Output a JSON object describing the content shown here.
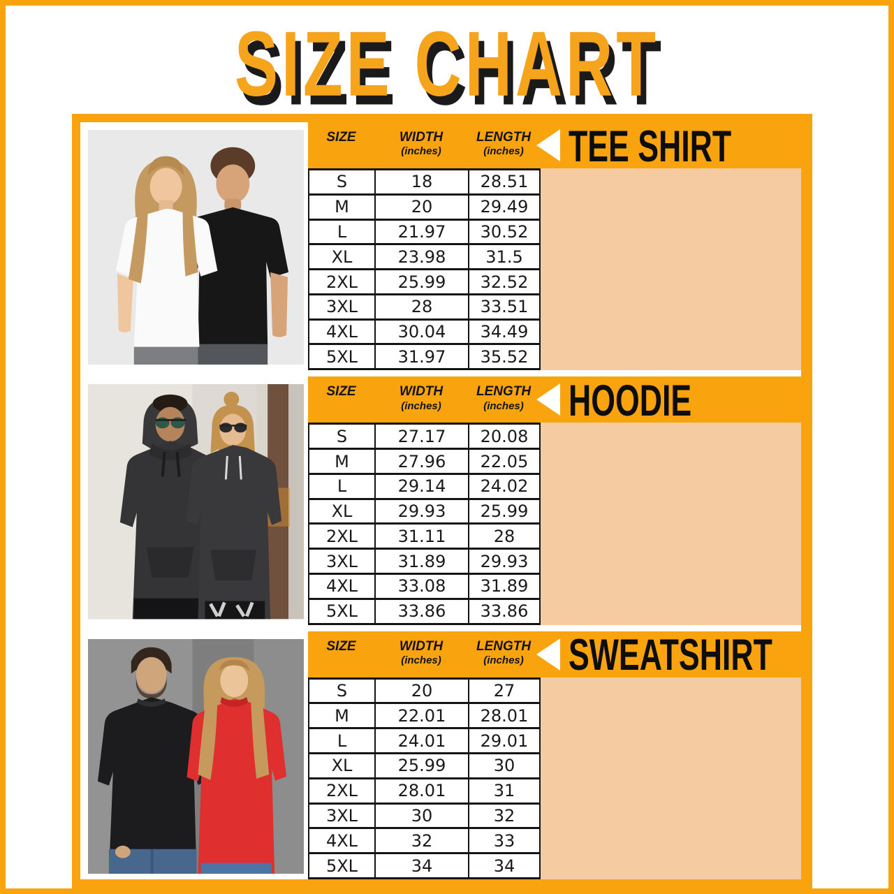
{
  "page_title": "SIZE CHART",
  "colors": {
    "orange": "#F9A40E",
    "peach": "#F5CBA2",
    "title_fill": "#F6A41C",
    "title_shadow": "#1A1A1A",
    "table_line": "#141414"
  },
  "column_headers": {
    "size": {
      "label": "SIZE",
      "sub": ""
    },
    "width": {
      "label": "WIDTH",
      "sub": "(inches)"
    },
    "length": {
      "label": "LENGTH",
      "sub": "(inches)"
    }
  },
  "sections": [
    {
      "title": "TEE SHIRT",
      "photo_alt": "man and woman wearing plain white and black tee shirts",
      "rows": [
        {
          "size": "S",
          "width": "18",
          "length": "28.51"
        },
        {
          "size": "M",
          "width": "20",
          "length": "29.49"
        },
        {
          "size": "L",
          "width": "21.97",
          "length": "30.52"
        },
        {
          "size": "XL",
          "width": "23.98",
          "length": "31.5"
        },
        {
          "size": "2XL",
          "width": "25.99",
          "length": "32.52"
        },
        {
          "size": "3XL",
          "width": "28",
          "length": "33.51"
        },
        {
          "size": "4XL",
          "width": "30.04",
          "length": "34.49"
        },
        {
          "size": "5XL",
          "width": "31.97",
          "length": "35.52"
        }
      ]
    },
    {
      "title": "HOODIE",
      "photo_alt": "man and woman wearing dark hoodies and sunglasses outdoors",
      "rows": [
        {
          "size": "S",
          "width": "27.17",
          "length": "20.08"
        },
        {
          "size": "M",
          "width": "27.96",
          "length": "22.05"
        },
        {
          "size": "L",
          "width": "29.14",
          "length": "24.02"
        },
        {
          "size": "XL",
          "width": "29.93",
          "length": "25.99"
        },
        {
          "size": "2XL",
          "width": "31.11",
          "length": "28"
        },
        {
          "size": "3XL",
          "width": "31.89",
          "length": "29.93"
        },
        {
          "size": "4XL",
          "width": "33.08",
          "length": "31.89"
        },
        {
          "size": "5XL",
          "width": "33.86",
          "length": "33.86"
        }
      ]
    },
    {
      "title": "SWEATSHIRT",
      "photo_alt": "man in black sweatshirt and woman in red sweatshirt wearing jeans",
      "rows": [
        {
          "size": "S",
          "width": "20",
          "length": "27"
        },
        {
          "size": "M",
          "width": "22.01",
          "length": "28.01"
        },
        {
          "size": "L",
          "width": "24.01",
          "length": "29.01"
        },
        {
          "size": "XL",
          "width": "25.99",
          "length": "30"
        },
        {
          "size": "2XL",
          "width": "28.01",
          "length": "31"
        },
        {
          "size": "3XL",
          "width": "30",
          "length": "32"
        },
        {
          "size": "4XL",
          "width": "32",
          "length": "33"
        },
        {
          "size": "5XL",
          "width": "34",
          "length": "34"
        }
      ]
    }
  ]
}
